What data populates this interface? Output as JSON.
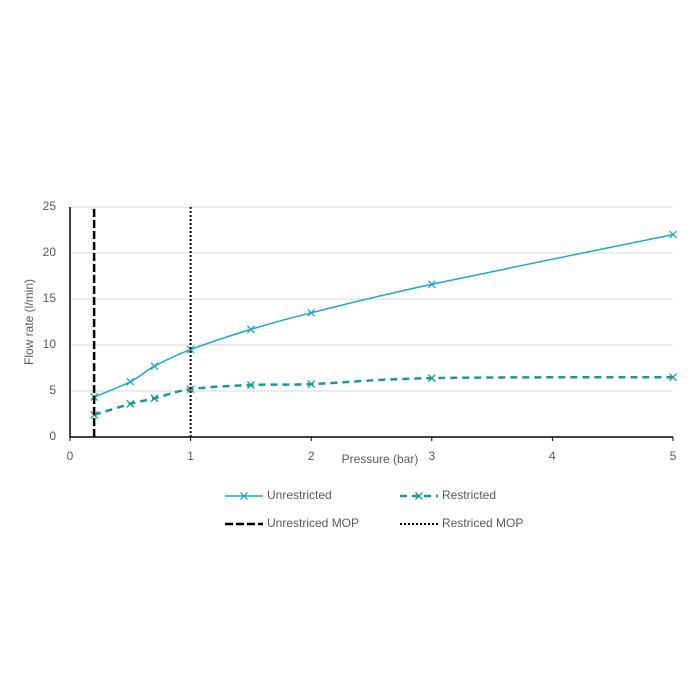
{
  "chart_data": {
    "type": "line",
    "x_label": "Pressure (bar)",
    "y_label": "Flow rate (l/min)",
    "xlim": [
      0,
      5
    ],
    "xticks": [
      0,
      1,
      2,
      3,
      4,
      5
    ],
    "ylim": [
      0,
      25
    ],
    "yticks": [
      0,
      5,
      10,
      15,
      20,
      25
    ],
    "grid": true,
    "legend": "bottom",
    "series": [
      {
        "name": "Unrestricted",
        "color": "#1ba8cc",
        "dash": "solid",
        "marker": "x",
        "x": [
          0.2,
          0.5,
          0.7,
          1,
          1.5,
          2,
          3,
          5
        ],
        "values": [
          4.35,
          6.0,
          7.7,
          9.5,
          11.7,
          13.5,
          16.6,
          22.0
        ]
      },
      {
        "name": "Restricted",
        "color": "#17999b",
        "dash": "dashed",
        "marker": "x",
        "x": [
          0.2,
          0.5,
          0.7,
          1,
          1.5,
          2,
          3,
          5
        ],
        "values": [
          2.4,
          3.6,
          4.2,
          5.2,
          5.65,
          5.75,
          6.4,
          6.5
        ]
      },
      {
        "name": "Unrestriced MOP",
        "color": "#000000",
        "dash": "heavydash",
        "marker": "none",
        "x": [
          0.2,
          0.2
        ],
        "values": [
          0,
          25
        ]
      },
      {
        "name": "Restriced MOP",
        "color": "#000000",
        "dash": "dotted",
        "marker": "none",
        "x": [
          1,
          1
        ],
        "values": [
          0,
          25
        ]
      }
    ]
  }
}
